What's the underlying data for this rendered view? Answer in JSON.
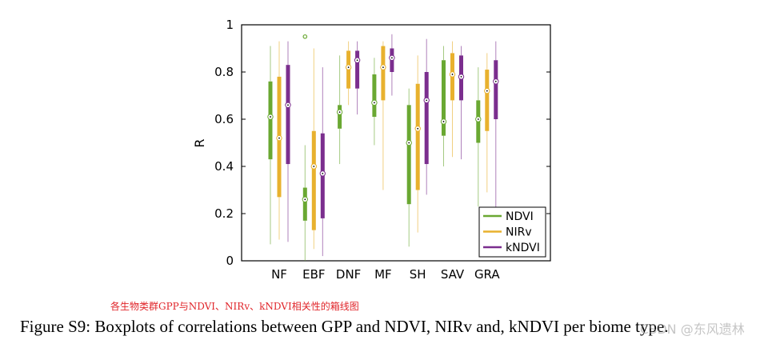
{
  "chart_data": {
    "type": "box",
    "title": "",
    "xlabel": "",
    "ylabel": "R",
    "ylim": [
      0,
      1
    ],
    "yticks": [
      "0",
      "0.2",
      "0.4",
      "0.6",
      "0.8",
      "1"
    ],
    "categories": [
      "NF",
      "EBF",
      "DNF",
      "MF",
      "SH",
      "SAV",
      "GRA"
    ],
    "grid": false,
    "legend_position": "bottom-right",
    "series": [
      {
        "name": "NDVI",
        "color": "#6aa832",
        "boxes": [
          {
            "min": 0.07,
            "q1": 0.43,
            "median": 0.61,
            "q3": 0.76,
            "max": 0.91
          },
          {
            "min": 0.0,
            "q1": 0.17,
            "median": 0.26,
            "q3": 0.31,
            "max": 0.49,
            "outliers": [
              0.95
            ]
          },
          {
            "min": 0.41,
            "q1": 0.56,
            "median": 0.63,
            "q3": 0.66,
            "max": 0.87
          },
          {
            "min": 0.49,
            "q1": 0.61,
            "median": 0.67,
            "q3": 0.79,
            "max": 0.86
          },
          {
            "min": 0.06,
            "q1": 0.24,
            "median": 0.5,
            "q3": 0.66,
            "max": 0.73
          },
          {
            "min": 0.4,
            "q1": 0.53,
            "median": 0.59,
            "q3": 0.85,
            "max": 0.91
          },
          {
            "min": 0.23,
            "q1": 0.5,
            "median": 0.6,
            "q3": 0.68,
            "max": 0.82
          }
        ]
      },
      {
        "name": "NIRv",
        "color": "#e8b12e",
        "boxes": [
          {
            "min": 0.09,
            "q1": 0.27,
            "median": 0.52,
            "q3": 0.78,
            "max": 0.93
          },
          {
            "min": 0.05,
            "q1": 0.13,
            "median": 0.4,
            "q3": 0.55,
            "max": 0.9
          },
          {
            "min": 0.66,
            "q1": 0.73,
            "median": 0.82,
            "q3": 0.89,
            "max": 0.93
          },
          {
            "min": 0.3,
            "q1": 0.68,
            "median": 0.82,
            "q3": 0.91,
            "max": 0.93
          },
          {
            "min": 0.12,
            "q1": 0.3,
            "median": 0.56,
            "q3": 0.75,
            "max": 0.87
          },
          {
            "min": 0.44,
            "q1": 0.68,
            "median": 0.79,
            "q3": 0.88,
            "max": 0.93
          },
          {
            "min": 0.29,
            "q1": 0.55,
            "median": 0.72,
            "q3": 0.81,
            "max": 0.88
          }
        ]
      },
      {
        "name": "kNDVI",
        "color": "#7b2e8e",
        "boxes": [
          {
            "min": 0.08,
            "q1": 0.41,
            "median": 0.66,
            "q3": 0.83,
            "max": 0.93
          },
          {
            "min": 0.02,
            "q1": 0.18,
            "median": 0.37,
            "q3": 0.54,
            "max": 0.82
          },
          {
            "min": 0.62,
            "q1": 0.73,
            "median": 0.85,
            "q3": 0.89,
            "max": 0.93
          },
          {
            "min": 0.7,
            "q1": 0.8,
            "median": 0.86,
            "q3": 0.9,
            "max": 0.96
          },
          {
            "min": 0.28,
            "q1": 0.41,
            "median": 0.68,
            "q3": 0.8,
            "max": 0.94
          },
          {
            "min": 0.43,
            "q1": 0.68,
            "median": 0.78,
            "q3": 0.87,
            "max": 0.91
          },
          {
            "min": 0.09,
            "q1": 0.6,
            "median": 0.76,
            "q3": 0.85,
            "max": 0.93
          }
        ]
      }
    ]
  },
  "note": "各生物类群GPP与NDVI、NIRv、kNDVI相关性的箱线图",
  "caption": "Figure S9: Boxplots of correlations between GPP and NDVI, NIRv and, kNDVI per biome type.",
  "watermark": "CSDN @东风遗林"
}
